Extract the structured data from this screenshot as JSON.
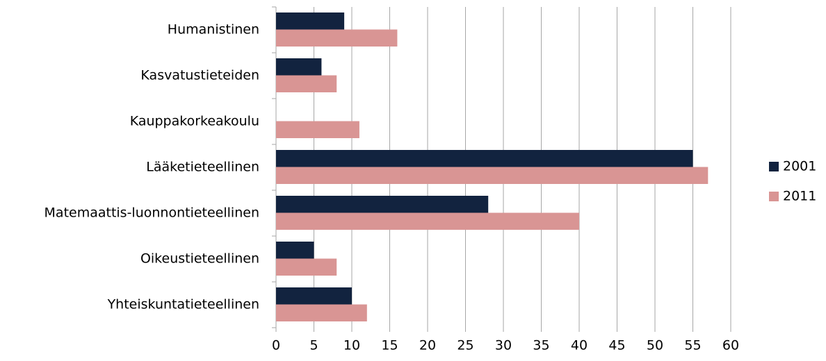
{
  "chart_data": {
    "type": "barh",
    "categories": [
      "Humanistinen",
      "Kasvatustieteiden",
      "Kauppakorkeakoulu",
      "Lääketieteellinen",
      "Matemaattis-luonnontieteellinen",
      "Oikeustieteellinen",
      "Yhteiskuntatieteellinen"
    ],
    "series": [
      {
        "name": "2001",
        "color": "#12233f",
        "values": [
          9,
          6,
          0,
          55,
          28,
          5,
          10
        ]
      },
      {
        "name": "2011",
        "color": "#d99594",
        "values": [
          16,
          8,
          11,
          57,
          40,
          8,
          12
        ]
      }
    ],
    "xlim": [
      0,
      60
    ],
    "xticks": [
      0,
      5,
      10,
      15,
      20,
      25,
      30,
      35,
      40,
      45,
      50,
      55,
      60
    ],
    "grid": true,
    "legend": "right"
  }
}
